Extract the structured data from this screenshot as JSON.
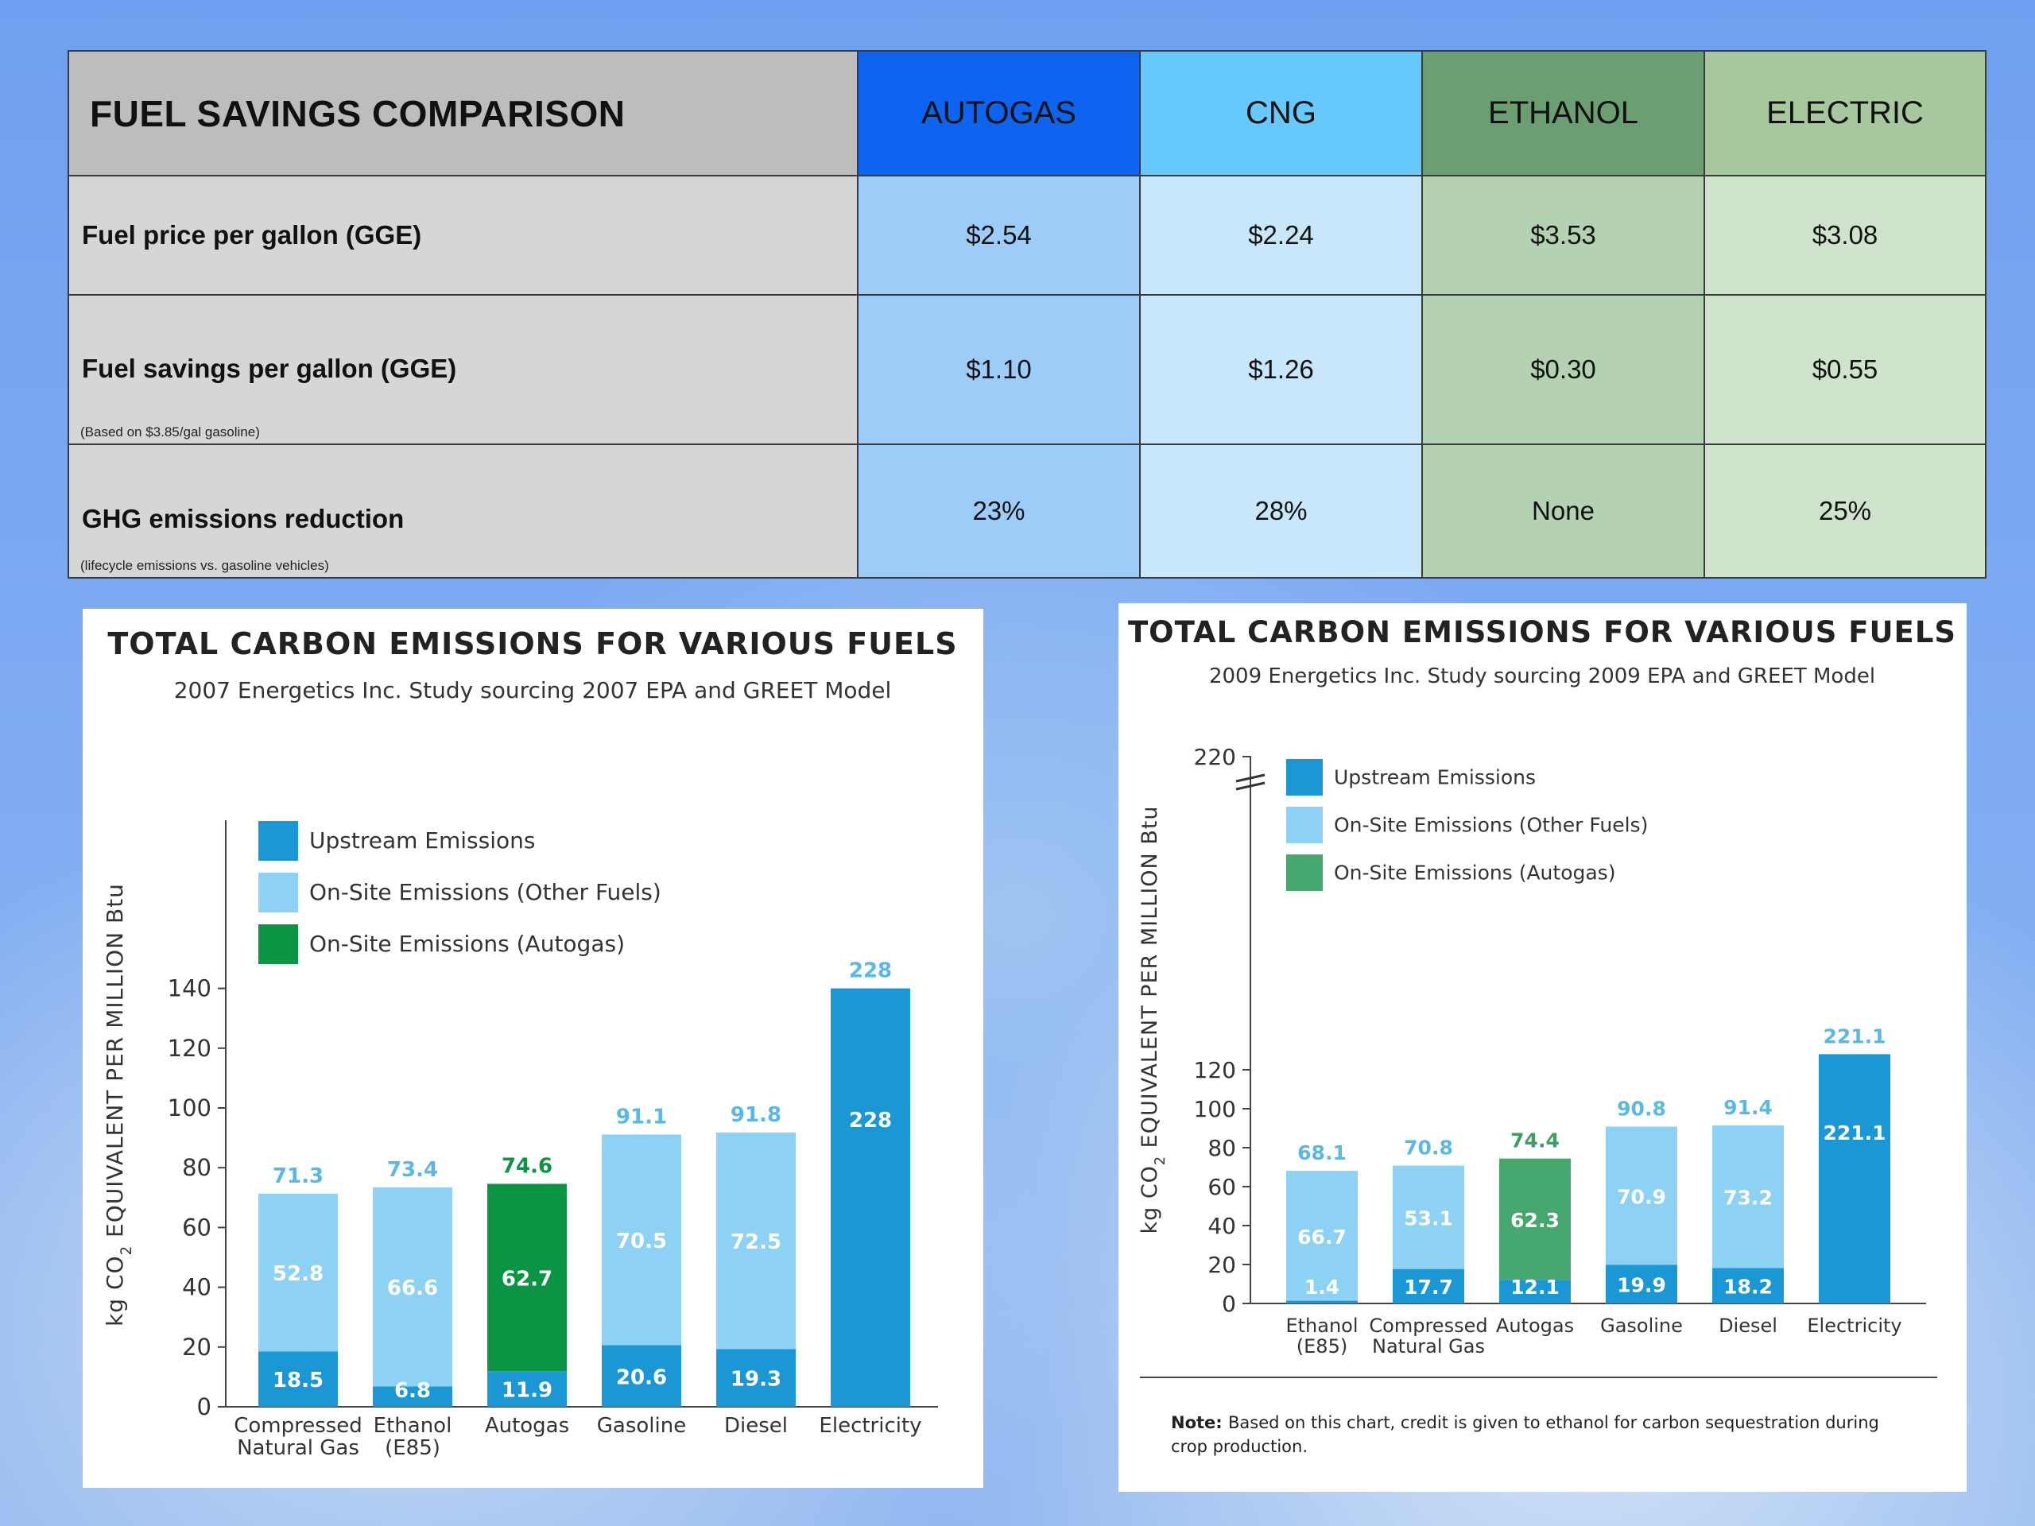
{
  "table": {
    "title": "FUEL SAVINGS COMPARISON",
    "columns": [
      "AUTOGAS",
      "CNG",
      "ETHANOL",
      "ELECTRIC"
    ],
    "rows": [
      {
        "label": "Fuel price per gallon (GGE)",
        "note": "",
        "values": [
          "$2.54",
          "$2.24",
          "$3.53",
          "$3.08"
        ]
      },
      {
        "label": "Fuel savings per gallon (GGE)",
        "note": "(Based on $3.85/gal gasoline)",
        "values": [
          "$1.10",
          "$1.26",
          "$0.30",
          "$0.55"
        ]
      },
      {
        "label": "GHG emissions reduction",
        "note": "(lifecycle emissions vs. gasoline vehicles)",
        "values": [
          "23%",
          "28%",
          "None",
          "25%"
        ]
      }
    ]
  },
  "chart_data": [
    {
      "type": "bar",
      "title": "TOTAL CARBON EMISSIONS FOR VARIOUS FUELS",
      "subtitle": "2007 Energetics Inc. Study sourcing 2007 EPA  and GREET Model",
      "ylabel": "kg CO2 EQUIVALENT PER MILLION Btu",
      "ylim": [
        0,
        140
      ],
      "yticks": [
        0,
        20,
        40,
        60,
        80,
        100,
        120,
        140
      ],
      "stacked": true,
      "axis_break": true,
      "categories": [
        [
          "Compressed",
          "Natural Gas"
        ],
        [
          "Ethanol",
          "(E85)"
        ],
        [
          "Autogas"
        ],
        [
          "Gasoline"
        ],
        [
          "Diesel"
        ],
        [
          "Electricity"
        ]
      ],
      "legend": [
        "Upstream Emissions",
        "On-Site Emissions (Other Fuels)",
        "On-Site Emissions (Autogas)"
      ],
      "series": [
        {
          "name": "Upstream Emissions",
          "values": [
            18.5,
            6.8,
            11.9,
            20.6,
            19.3,
            228
          ]
        },
        {
          "name": "On-Site Emissions (Other Fuels)",
          "values": [
            52.8,
            66.6,
            null,
            70.5,
            72.5,
            null
          ]
        },
        {
          "name": "On-Site Emissions (Autogas)",
          "values": [
            null,
            null,
            62.7,
            null,
            null,
            null
          ]
        }
      ],
      "totals": [
        71.3,
        73.4,
        74.6,
        91.1,
        91.8,
        228
      ]
    },
    {
      "type": "bar",
      "title": "TOTAL CARBON EMISSIONS FOR VARIOUS FUELS",
      "subtitle": "2009 Energetics Inc. Study sourcing 2009 EPA  and GREET Model",
      "ylabel": "kg CO2 EQUIVALENT PER MILLION Btu",
      "ylim": [
        0,
        220
      ],
      "yticks": [
        0,
        20,
        40,
        60,
        80,
        100,
        120,
        220
      ],
      "stacked": true,
      "axis_break": true,
      "categories": [
        [
          "Ethanol",
          "(E85)"
        ],
        [
          "Compressed",
          "Natural Gas"
        ],
        [
          "Autogas"
        ],
        [
          "Gasoline"
        ],
        [
          "Diesel"
        ],
        [
          "Electricity"
        ]
      ],
      "legend": [
        "Upstream Emissions",
        "On-Site Emissions (Other Fuels)",
        "On-Site Emissions (Autogas)"
      ],
      "series": [
        {
          "name": "Upstream Emissions",
          "values": [
            1.4,
            17.7,
            12.1,
            19.9,
            18.2,
            221.1
          ]
        },
        {
          "name": "On-Site Emissions (Other Fuels)",
          "values": [
            66.7,
            53.1,
            null,
            70.9,
            73.2,
            null
          ]
        },
        {
          "name": "On-Site Emissions (Autogas)",
          "values": [
            null,
            null,
            62.3,
            null,
            null,
            null
          ]
        }
      ],
      "totals": [
        68.1,
        70.8,
        74.4,
        90.8,
        91.4,
        221.1
      ],
      "note_bold": "Note:",
      "note": "Based on this chart, credit is given to ethanol for carbon sequestration during crop production."
    }
  ],
  "colors": {
    "upstream": "#1b97d6",
    "onsite_other": "#8dd1f5",
    "onsite_autogas_2007": "#0b9444",
    "onsite_autogas_2009": "#46a86f",
    "total_label": "#5bb8e6",
    "autogas_total_2007": "#0b9444",
    "autogas_total_2009": "#3e9f66"
  }
}
